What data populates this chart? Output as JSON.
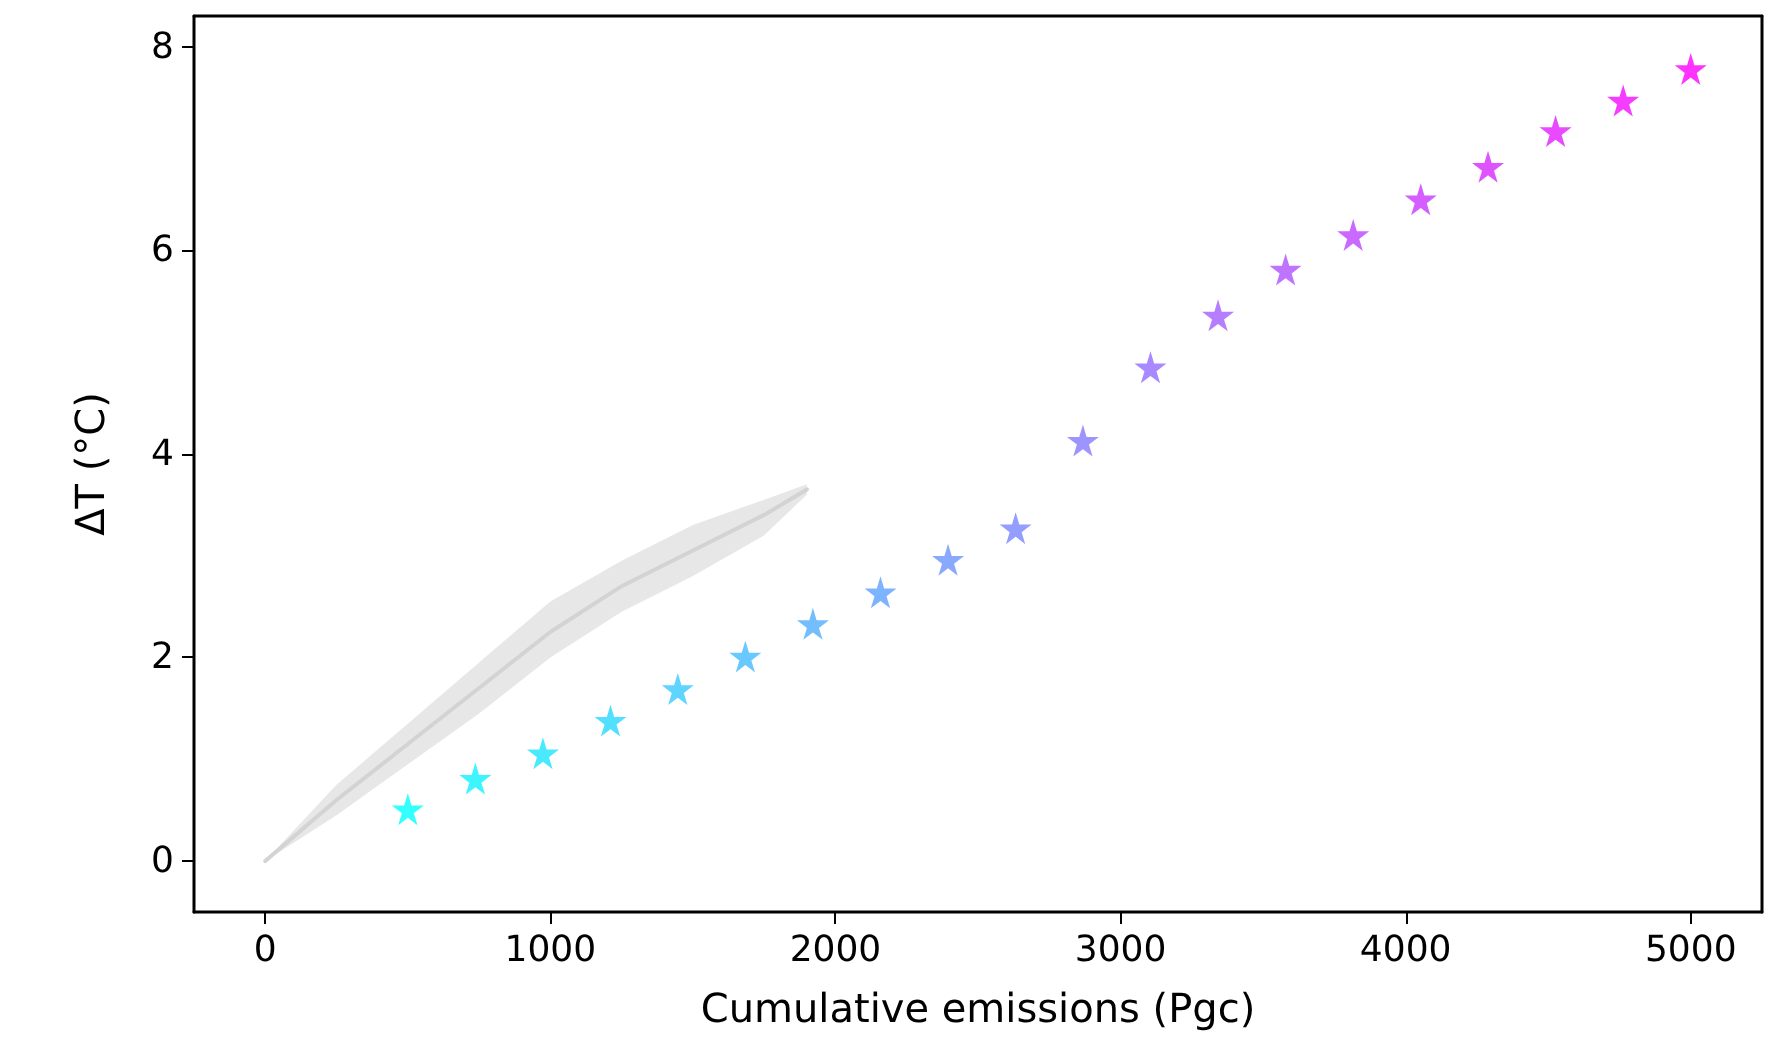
{
  "chart_data": {
    "type": "scatter",
    "xlabel": "Cumulative emissions (Pgc)",
    "ylabel": "ΔT (°C)",
    "xlim": [
      -250,
      5250
    ],
    "xticks": [
      0,
      {
        "value": 1000,
        "label": "1000"
      },
      {
        "value": 2000,
        "label": "2000"
      },
      {
        "value": 3000,
        "label": "3000"
      },
      {
        "value": 4000,
        "label": "4000"
      },
      {
        "value": 5000,
        "label": "5000"
      }
    ],
    "ylim": [
      -0.5,
      8.3
    ],
    "yticks": [
      0,
      2,
      4,
      6,
      8
    ],
    "grid": false,
    "series": [
      {
        "type": "line",
        "color": "#d3d3d3",
        "marker": "none",
        "line_style": "solid",
        "x": [
          0,
          250,
          500,
          750,
          1000,
          1250,
          1500,
          1750,
          1900
        ],
        "values": [
          0,
          0.6,
          1.15,
          1.7,
          2.25,
          2.7,
          3.05,
          3.4,
          3.65
        ],
        "lower": [
          0,
          0.45,
          0.95,
          1.45,
          2.0,
          2.45,
          2.8,
          3.2,
          3.6
        ],
        "upper": [
          0,
          0.75,
          1.35,
          1.95,
          2.55,
          2.95,
          3.3,
          3.55,
          3.7
        ]
      },
      {
        "marker": "star",
        "x": [
          500,
          737,
          974,
          1211,
          1447,
          1684,
          1921,
          2158,
          2395,
          2632,
          2868,
          3105,
          3342,
          3579,
          3816,
          4053,
          4289,
          4526,
          4763,
          5000
        ],
        "values": [
          0.51,
          0.81,
          1.06,
          1.38,
          1.69,
          2.01,
          2.33,
          2.64,
          2.96,
          3.27,
          4.13,
          4.85,
          5.36,
          5.81,
          6.15,
          6.5,
          6.82,
          7.17,
          7.47,
          7.78
        ],
        "colors": [
          "#00ffff",
          "#0df2ff",
          "#1be4ff",
          "#28d7ff",
          "#36c9ff",
          "#43bcff",
          "#51aeff",
          "#5ea1ff",
          "#6b94ff",
          "#7986ff",
          "#8679ff",
          "#946bff",
          "#a15eff",
          "#ae51ff",
          "#bc43ff",
          "#c936ff",
          "#d728ff",
          "#e41bff",
          "#f20dff",
          "#ff00ff"
        ]
      }
    ]
  }
}
